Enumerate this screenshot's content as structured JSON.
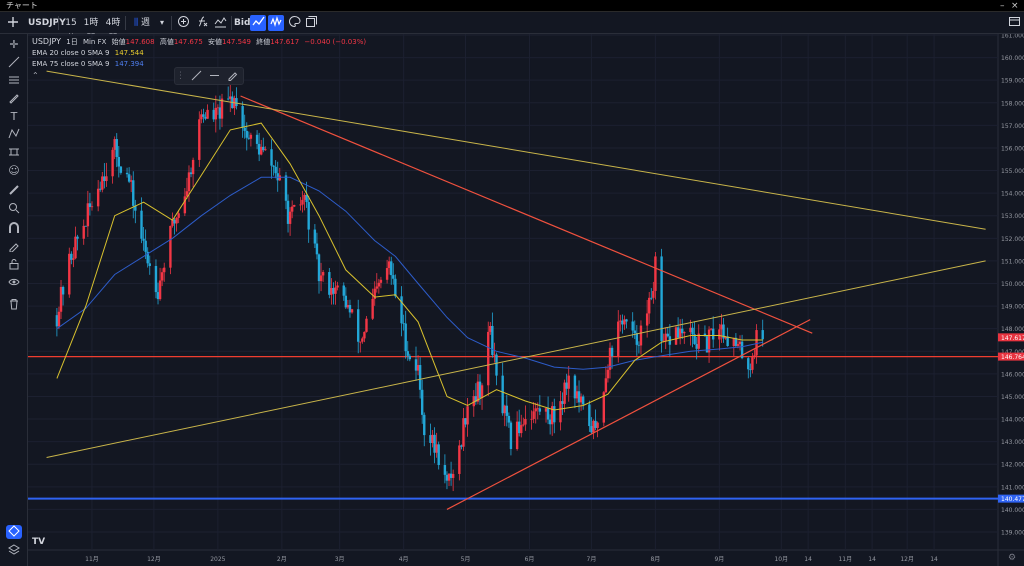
{
  "window": {
    "title": "チャート"
  },
  "toolbar": {
    "symbol": "USDJPY",
    "timeframes": [
      "15分",
      "1時間",
      "4時間"
    ],
    "chart_type_label": "週",
    "bid_label": "Bid"
  },
  "legend": {
    "symbol": "USDJPY",
    "interval": "1日",
    "source": "Min FX",
    "open_label": "始値",
    "open": "147.608",
    "high_label": "高値",
    "high": "147.675",
    "low_label": "安値",
    "low": "147.549",
    "close_label": "終値",
    "close": "147.617",
    "change": "−0.040 (−0.03%)",
    "ema1_label": "EMA 20 close 0 SMA 9",
    "ema1_value": "147.544",
    "ema2_label": "EMA 75 close 0 SMA 9",
    "ema2_value": "147.394"
  },
  "colors": {
    "background": "#131722",
    "up": "#f23645",
    "down": "#22a7d8",
    "ema20": "#d8c12e",
    "ema75": "#2d5cc9",
    "trend_red": "#f0513e",
    "trend_yellow": "#c9b54a",
    "hline_red": "#ef3d2f",
    "hline_blue": "#2f63f2",
    "price_badge": "#e8333f",
    "support_badge": "#2f63f2"
  },
  "chart_data": {
    "type": "candlestick",
    "symbol": "USDJPY",
    "interval": "1日",
    "ylim": [
      138.4,
      161.4
    ],
    "y_ticks": [
      "161.000",
      "160.000",
      "159.000",
      "158.000",
      "157.000",
      "156.000",
      "155.000",
      "154.000",
      "153.000",
      "152.000",
      "151.000",
      "150.000",
      "149.000",
      "148.000",
      "147.000",
      "146.000",
      "145.000",
      "144.000",
      "143.000",
      "142.000",
      "141.000",
      "140.000",
      "139.000"
    ],
    "x_ticks": [
      "11月",
      "12月",
      "2025",
      "2月",
      "3月",
      "4月",
      "5月",
      "6月",
      "7月",
      "8月",
      "9月",
      "10月",
      "14",
      "11月",
      "14",
      "12月",
      "14"
    ],
    "last_price": "147.617",
    "red_horizontal_level": "146.764",
    "blue_horizontal_level": "140.477",
    "price_path": [
      [
        "2024-10-15",
        148.6
      ],
      [
        "2024-10-22",
        151.3
      ],
      [
        "2024-10-29",
        152.8
      ],
      [
        "2024-11-05",
        154.6
      ],
      [
        "2024-11-12",
        155.9
      ],
      [
        "2024-11-19",
        154.5
      ],
      [
        "2024-11-26",
        151.6
      ],
      [
        "2024-12-03",
        149.8
      ],
      [
        "2024-12-10",
        152.5
      ],
      [
        "2024-12-17",
        154.3
      ],
      [
        "2024-12-24",
        157.5
      ],
      [
        "2024-12-31",
        157.4
      ],
      [
        "2025-01-07",
        158.1
      ],
      [
        "2025-01-10",
        158.2
      ],
      [
        "2025-01-15",
        156.5
      ],
      [
        "2025-01-22",
        155.9
      ],
      [
        "2025-01-29",
        155.0
      ],
      [
        "2025-02-05",
        152.8
      ],
      [
        "2025-02-12",
        153.8
      ],
      [
        "2025-02-19",
        150.3
      ],
      [
        "2025-02-26",
        149.8
      ],
      [
        "2025-03-04",
        149.2
      ],
      [
        "2025-03-11",
        147.4
      ],
      [
        "2025-03-18",
        149.4
      ],
      [
        "2025-03-25",
        150.8
      ],
      [
        "2025-03-28",
        149.5
      ],
      [
        "2025-04-04",
        146.7
      ],
      [
        "2025-04-08",
        146.2
      ],
      [
        "2025-04-11",
        143.6
      ],
      [
        "2025-04-18",
        142.4
      ],
      [
        "2025-04-22",
        141.0
      ],
      [
        "2025-04-28",
        142.6
      ],
      [
        "2025-05-02",
        144.8
      ],
      [
        "2025-05-09",
        145.5
      ],
      [
        "2025-05-13",
        148.1
      ],
      [
        "2025-05-16",
        145.6
      ],
      [
        "2025-05-23",
        143.0
      ],
      [
        "2025-05-30",
        144.2
      ],
      [
        "2025-06-06",
        144.4
      ],
      [
        "2025-06-13",
        144.1
      ],
      [
        "2025-06-20",
        145.9
      ],
      [
        "2025-06-27",
        144.3
      ],
      [
        "2025-07-03",
        143.4
      ],
      [
        "2025-07-09",
        146.6
      ],
      [
        "2025-07-16",
        148.5
      ],
      [
        "2025-07-22",
        147.4
      ],
      [
        "2025-07-28",
        148.4
      ],
      [
        "2025-08-01",
        150.7
      ],
      [
        "2025-08-04",
        147.1
      ],
      [
        "2025-08-11",
        147.9
      ],
      [
        "2025-08-18",
        147.6
      ],
      [
        "2025-08-25",
        147.2
      ],
      [
        "2025-09-01",
        148.2
      ],
      [
        "2025-09-08",
        147.3
      ],
      [
        "2025-09-12",
        146.9
      ],
      [
        "2025-09-16",
        146.4
      ],
      [
        "2025-09-19",
        147.6
      ],
      [
        "2025-09-22",
        147.6
      ]
    ],
    "ema20": [
      [
        "2024-10-15",
        145.8
      ],
      [
        "2024-10-29",
        149.0
      ],
      [
        "2024-11-12",
        153.0
      ],
      [
        "2024-11-26",
        153.6
      ],
      [
        "2024-12-10",
        152.8
      ],
      [
        "2024-12-24",
        154.8
      ],
      [
        "2025-01-07",
        156.8
      ],
      [
        "2025-01-22",
        157.1
      ],
      [
        "2025-02-05",
        155.3
      ],
      [
        "2025-02-19",
        153.0
      ],
      [
        "2025-03-04",
        150.6
      ],
      [
        "2025-03-18",
        149.4
      ],
      [
        "2025-03-28",
        149.5
      ],
      [
        "2025-04-08",
        148.3
      ],
      [
        "2025-04-22",
        145.0
      ],
      [
        "2025-05-02",
        144.6
      ],
      [
        "2025-05-16",
        145.3
      ],
      [
        "2025-05-30",
        144.8
      ],
      [
        "2025-06-13",
        144.4
      ],
      [
        "2025-06-27",
        144.6
      ],
      [
        "2025-07-09",
        145.1
      ],
      [
        "2025-07-22",
        146.6
      ],
      [
        "2025-08-04",
        147.4
      ],
      [
        "2025-08-18",
        147.7
      ],
      [
        "2025-09-01",
        147.7
      ],
      [
        "2025-09-12",
        147.5
      ],
      [
        "2025-09-22",
        147.5
      ]
    ],
    "ema75": [
      [
        "2024-10-15",
        148.0
      ],
      [
        "2024-10-29",
        148.9
      ],
      [
        "2024-11-12",
        150.4
      ],
      [
        "2024-11-26",
        151.2
      ],
      [
        "2024-12-10",
        152.0
      ],
      [
        "2024-12-24",
        153.0
      ],
      [
        "2025-01-07",
        153.9
      ],
      [
        "2025-01-22",
        154.7
      ],
      [
        "2025-02-05",
        154.7
      ],
      [
        "2025-02-19",
        154.1
      ],
      [
        "2025-03-04",
        153.2
      ],
      [
        "2025-03-18",
        151.9
      ],
      [
        "2025-03-28",
        151.2
      ],
      [
        "2025-04-08",
        150.0
      ],
      [
        "2025-04-22",
        148.5
      ],
      [
        "2025-05-02",
        147.6
      ],
      [
        "2025-05-16",
        147.0
      ],
      [
        "2025-05-30",
        146.7
      ],
      [
        "2025-06-13",
        146.3
      ],
      [
        "2025-06-27",
        146.2
      ],
      [
        "2025-07-09",
        146.3
      ],
      [
        "2025-07-22",
        146.6
      ],
      [
        "2025-08-04",
        146.8
      ],
      [
        "2025-08-18",
        147.0
      ],
      [
        "2025-09-01",
        147.1
      ],
      [
        "2025-09-12",
        147.2
      ],
      [
        "2025-09-22",
        147.4
      ]
    ],
    "trendlines": [
      {
        "color": "red",
        "from": [
          "2025-01-12",
          158.3
        ],
        "to": [
          "2025-10-16",
          147.8
        ]
      },
      {
        "color": "red",
        "from": [
          "2025-04-22",
          140.0
        ],
        "to": [
          "2025-10-15",
          148.4
        ]
      },
      {
        "color": "yellow",
        "from": [
          "2024-10-10",
          159.4
        ],
        "to": [
          "2026-01-08",
          152.4
        ]
      },
      {
        "color": "yellow",
        "from": [
          "2024-10-10",
          142.3
        ],
        "to": [
          "2026-01-08",
          151.0
        ]
      }
    ]
  }
}
